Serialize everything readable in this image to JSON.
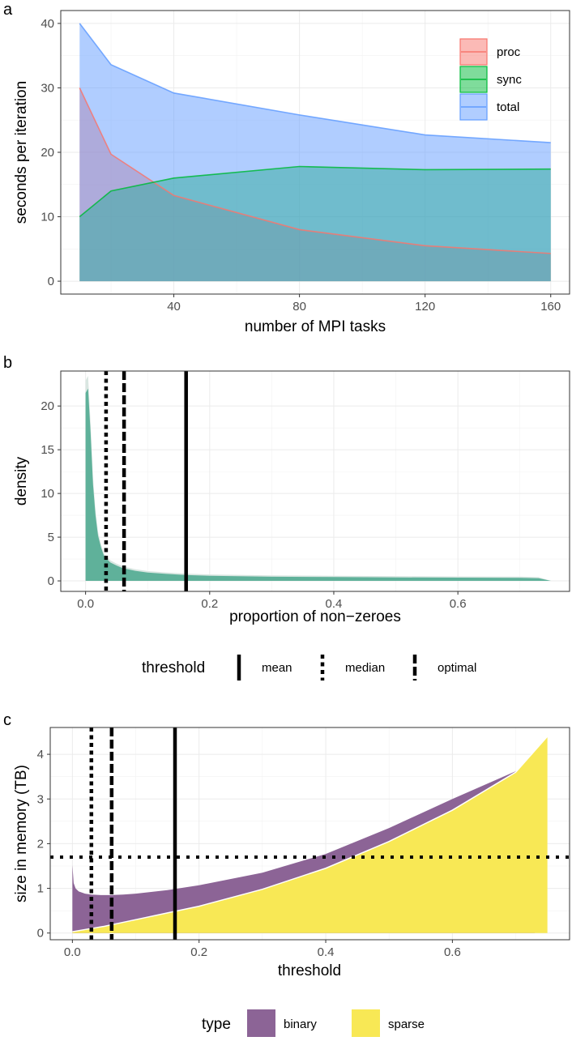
{
  "chart_data": [
    {
      "panel": "a",
      "type": "area",
      "xlabel": "number of MPI tasks",
      "ylabel": "seconds per iteration",
      "xlim": [
        4,
        166
      ],
      "ylim": [
        -2,
        42
      ],
      "xticks": [
        40,
        80,
        120,
        160
      ],
      "yticks": [
        0,
        10,
        20,
        30,
        40
      ],
      "legend_position": "top-right",
      "series": [
        {
          "name": "proc",
          "color": "#F8766D",
          "x": [
            10,
            20,
            40,
            80,
            120,
            160
          ],
          "values": [
            30,
            19.7,
            13.3,
            8,
            5.5,
            4.3
          ]
        },
        {
          "name": "sync",
          "color": "#00BA38",
          "x": [
            10,
            20,
            40,
            80,
            120,
            160
          ],
          "values": [
            10,
            14,
            16,
            17.8,
            17.3,
            17.4
          ]
        },
        {
          "name": "total",
          "color": "#619CFF",
          "x": [
            10,
            20,
            40,
            80,
            120,
            160
          ],
          "values": [
            40,
            33.6,
            29.2,
            25.8,
            22.7,
            21.5
          ]
        }
      ]
    },
    {
      "panel": "b",
      "type": "area",
      "xlabel": "proportion of non−zeroes",
      "ylabel": "density",
      "xlim": [
        -0.04,
        0.78
      ],
      "ylim": [
        -1.2,
        24
      ],
      "xticks": [
        0.0,
        0.2,
        0.4,
        0.6
      ],
      "xtick_labels": [
        "0.0",
        "0.2",
        "0.4",
        "0.6"
      ],
      "yticks": [
        0,
        5,
        10,
        15,
        20
      ],
      "fill_color": "#5fb19a",
      "x": [
        0.0,
        0.004,
        0.008,
        0.012,
        0.016,
        0.02,
        0.025,
        0.03,
        0.04,
        0.05,
        0.06,
        0.08,
        0.1,
        0.13,
        0.16,
        0.2,
        0.3,
        0.4,
        0.5,
        0.6,
        0.7,
        0.73,
        0.75
      ],
      "values": [
        21.5,
        22.0,
        17.0,
        11.0,
        7.5,
        5.2,
        3.8,
        2.8,
        2.1,
        1.75,
        1.45,
        1.15,
        0.95,
        0.8,
        0.68,
        0.58,
        0.48,
        0.44,
        0.4,
        0.37,
        0.35,
        0.3,
        0.0
      ],
      "thresholds": [
        {
          "name": "mean",
          "x": 0.162
        },
        {
          "name": "median",
          "x": 0.033
        },
        {
          "name": "optimal",
          "x": 0.062
        }
      ],
      "legend": {
        "title": "threshold",
        "entries": [
          "mean",
          "median",
          "optimal"
        ]
      }
    },
    {
      "panel": "c",
      "type": "area",
      "xlabel": "threshold",
      "ylabel": "size in memory (TB)",
      "xlim": [
        -0.035,
        0.785
      ],
      "ylim": [
        -0.15,
        4.6
      ],
      "xticks": [
        0.0,
        0.2,
        0.4,
        0.6
      ],
      "xtick_labels": [
        "0.0",
        "0.2",
        "0.4",
        "0.6"
      ],
      "yticks": [
        0,
        1,
        2,
        3,
        4
      ],
      "hline": 1.7,
      "thresholds": [
        {
          "name": "mean",
          "x": 0.162
        },
        {
          "name": "median",
          "x": 0.03
        },
        {
          "name": "optimal",
          "x": 0.062
        }
      ],
      "series": [
        {
          "name": "binary",
          "color": "#8C6496",
          "x": [
            0.0,
            0.002,
            0.005,
            0.01,
            0.02,
            0.03,
            0.045,
            0.06,
            0.08,
            0.1,
            0.15,
            0.2,
            0.3,
            0.4,
            0.5,
            0.6,
            0.7,
            0.73
          ],
          "values": [
            1.52,
            1.12,
            1.0,
            0.93,
            0.88,
            0.86,
            0.85,
            0.85,
            0.86,
            0.88,
            0.96,
            1.07,
            1.35,
            1.77,
            2.35,
            3.0,
            3.62,
            3.85
          ]
        },
        {
          "name": "sparse",
          "color": "#F8E855",
          "x": [
            0.0,
            0.05,
            0.1,
            0.15,
            0.2,
            0.3,
            0.4,
            0.5,
            0.6,
            0.7,
            0.75
          ],
          "values": [
            0.03,
            0.15,
            0.3,
            0.45,
            0.6,
            0.98,
            1.45,
            2.05,
            2.75,
            3.6,
            4.4
          ]
        }
      ],
      "legend": {
        "title": "type",
        "entries": [
          "binary",
          "sparse"
        ]
      }
    }
  ],
  "panels": {
    "a": {
      "letter": "a"
    },
    "b": {
      "letter": "b"
    },
    "c": {
      "letter": "c"
    }
  }
}
